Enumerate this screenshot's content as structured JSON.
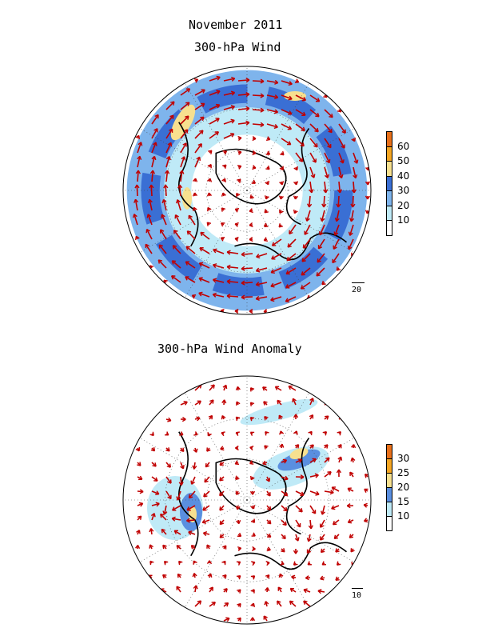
{
  "titles": {
    "top_line1": "November 2011",
    "top_line2": "300-hPa Wind",
    "bottom": "300-hPa Wind Anomaly"
  },
  "maps": [
    {
      "name": "wind",
      "reference_vector_label": "20",
      "legend": {
        "labels": [
          "60",
          "50",
          "40",
          "30",
          "20",
          "10"
        ],
        "colors": [
          "#e8701a",
          "#f5a623",
          "#f7e08f",
          "#3a6fd4",
          "#7eb4ec",
          "#bfeaf7",
          "#ffffff"
        ]
      }
    },
    {
      "name": "wind-anomaly",
      "reference_vector_label": "10",
      "legend": {
        "labels": [
          "30",
          "25",
          "20",
          "15",
          "10"
        ],
        "colors": [
          "#e8701a",
          "#f5a623",
          "#f7e08f",
          "#5a8fe0",
          "#bfeaf7",
          "#ffffff"
        ]
      }
    }
  ],
  "vector_color": "#c00000"
}
